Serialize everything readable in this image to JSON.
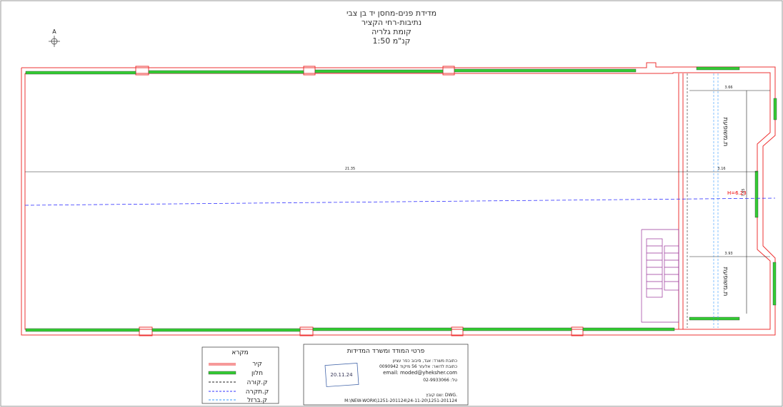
{
  "title_block": {
    "lines": [
      "מדידת פנים-מחסן יד בן צבי",
      "נתיבות-רחי הקציר",
      "קומת גלריה",
      "קנ\"מ 1:50"
    ]
  },
  "north_arrow": "A",
  "dimensions": {
    "length": "21.35",
    "gap": "3.16",
    "room_top_width": "3.66",
    "room_bottom_width": "3.93",
    "depth": "7.65",
    "height": "H=6.23"
  },
  "rooms": [
    "ת.משופעת",
    "ת.משופעת"
  ],
  "legend": {
    "title": "מקרא",
    "items": [
      "קיר",
      "חלון",
      "ק.קורה",
      "ק.תקרה",
      "ק.ברזל"
    ]
  },
  "surveyor": {
    "title": "פרטי המודד ומשרד המדידות",
    "lines": [
      "כתובת משרד: אגד, סיבוב כפר עציון",
      "כתובת לדואר: אלעזר 56 מיקוד 0090942",
      "email: moded@yheksher.com",
      "טל: 02-9933066",
      "שם קובץ: DWG.",
      "M:\\NEW-WORK\\1251-201124\\24-11-20\\1251-201124"
    ],
    "stamp_date": "20.11.24"
  }
}
